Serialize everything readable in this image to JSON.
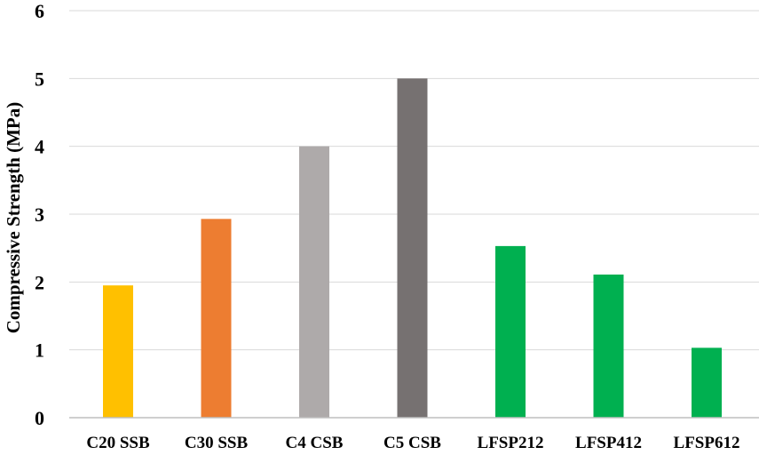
{
  "chart_data": {
    "type": "bar",
    "categories": [
      "C20 SSB",
      "C30 SSB",
      "C4 CSB",
      "C5 CSB",
      "LFSP212",
      "LFSP412",
      "LFSP612"
    ],
    "values": [
      1.95,
      2.93,
      4.0,
      5.0,
      2.53,
      2.11,
      1.03
    ],
    "colors": [
      "#FFC000",
      "#ED7D31",
      "#AEAAAA",
      "#767171",
      "#00B050",
      "#00B050",
      "#00B050"
    ],
    "ylabel": "Compressive Strength (MPa)",
    "xlabel": "",
    "ylim": [
      0,
      6
    ],
    "yticks": [
      "0",
      "1",
      "2",
      "3",
      "4",
      "5",
      "6"
    ],
    "grid": true,
    "legend": "none"
  }
}
